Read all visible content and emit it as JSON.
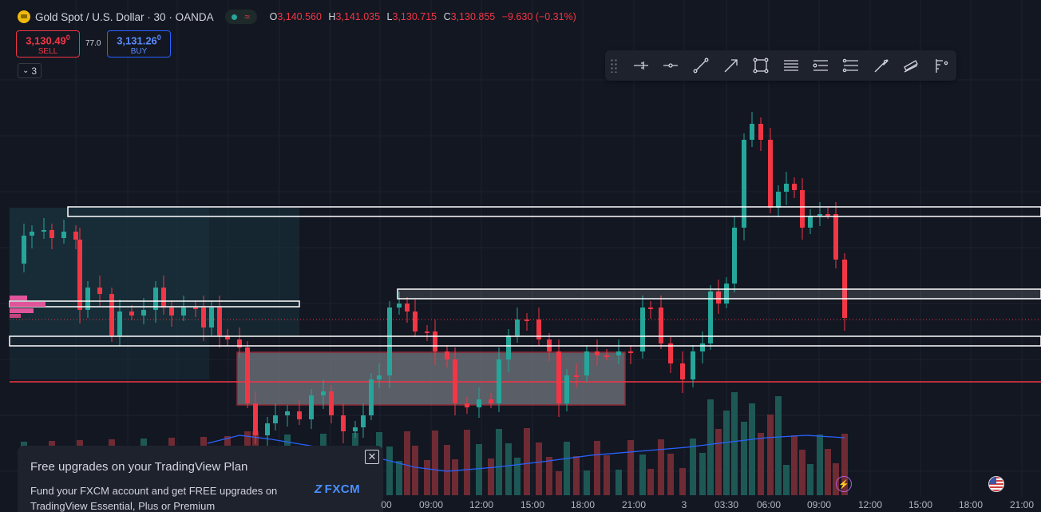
{
  "symbol": {
    "title": "Gold Spot / U.S. Dollar · 30 · OANDA",
    "icon": "gold-coin-icon",
    "status_icons": [
      "market-open-dot-icon",
      "wave-icon"
    ],
    "ohlc": {
      "o_label": "O",
      "o_value": "3,140.560",
      "h_label": "H",
      "h_value": "3,141.035",
      "l_label": "L",
      "l_value": "3,130.715",
      "c_label": "C",
      "c_value": "3,130.855",
      "change": "−9.630 (−0.31%)"
    }
  },
  "trade": {
    "sell_price": "3,130.49",
    "sell_price_sup": "0",
    "sell_label": "SELL",
    "spread": "77.0",
    "buy_price": "3,131.26",
    "buy_price_sup": "0",
    "buy_label": "BUY"
  },
  "indicators_toggle": {
    "icon": "chevron-down-icon",
    "count": "3"
  },
  "drawing_toolbar": {
    "tools": [
      "horizontal-ray-icon",
      "horizontal-line-icon",
      "trend-line-icon",
      "arrow-icon",
      "rectangle-icon",
      "parallel-lines-icon",
      "fib-retracement-icon",
      "fib-levels-icon",
      "brush-icon",
      "channel-icon",
      "pitchfork-icon"
    ]
  },
  "promo": {
    "title": "Free upgrades on your TradingView Plan",
    "body": "Fund your FXCM account and get FREE upgrades on TradingView Essential, Plus or Premium",
    "logo": "FXCM",
    "close": "✕"
  },
  "time_axis": [
    "00",
    "09:00",
    "12:00",
    "15:00",
    "18:00",
    "21:00",
    "3",
    "03:30",
    "06:00",
    "09:00",
    "12:00",
    "15:00",
    "18:00",
    "21:00"
  ],
  "colors": {
    "background": "#131722",
    "bullish": "#26a69a",
    "bearish": "#f23645",
    "volume_ma": "#2962ff",
    "zone_outline": "#ffffff",
    "demand_box": "#f23645"
  },
  "chart_data": {
    "type": "candlestick",
    "symbol": "XAUUSD",
    "interval": "30",
    "x_axis_labels": [
      "00",
      "09:00",
      "12:00",
      "15:00",
      "18:00",
      "21:00",
      "3",
      "03:30",
      "06:00",
      "09:00",
      "12:00",
      "15:00",
      "18:00",
      "21:00"
    ],
    "candles_ohlc_relative": [
      [
        0.5,
        0.6,
        0.4,
        0.58
      ],
      [
        0.58,
        0.66,
        0.55,
        0.64
      ],
      [
        0.64,
        0.68,
        0.6,
        0.66
      ],
      [
        0.66,
        0.7,
        0.62,
        0.65
      ],
      [
        0.65,
        0.69,
        0.6,
        0.67
      ],
      [
        0.67,
        0.71,
        0.62,
        0.63
      ],
      [
        0.63,
        0.66,
        0.58,
        0.64
      ],
      [
        0.64,
        0.67,
        0.4,
        0.45
      ]
    ],
    "last_close": "3,130.855",
    "ohlc_last": {
      "open": 3140.56,
      "high": 3141.035,
      "low": 3130.715,
      "close": 3130.855
    },
    "change": -9.63,
    "change_pct": -0.31,
    "grid": true
  }
}
